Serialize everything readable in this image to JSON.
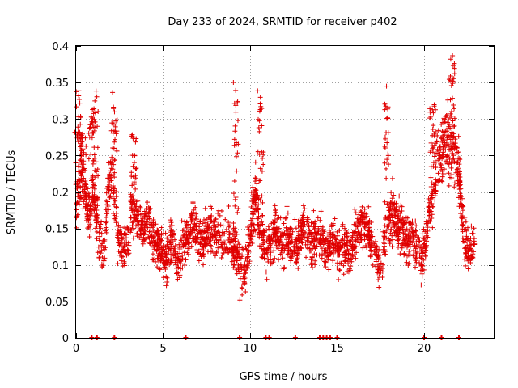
{
  "chart_data": {
    "type": "scatter",
    "title": "Day 233 of 2024, SRMTID for receiver p402",
    "xlabel": "GPS time / hours",
    "ylabel": "SRMTID / TECUs",
    "xlim": [
      0,
      24
    ],
    "ylim": [
      0,
      0.4
    ],
    "x_ticks": [
      0,
      5,
      10,
      15,
      20
    ],
    "x_tick_labels": [
      "0",
      "5",
      "10",
      "15",
      "20"
    ],
    "y_ticks": [
      0,
      0.05,
      0.1,
      0.15,
      0.2,
      0.25,
      0.3,
      0.35,
      0.4
    ],
    "y_tick_labels": [
      "0",
      "0.05",
      "0.1",
      "0.15",
      "0.2",
      "0.25",
      "0.3",
      "0.35",
      "0.4"
    ],
    "grid": true,
    "marker": "+",
    "color": "#e00000",
    "series": [
      {
        "name": "SRMTID",
        "anchors": {
          "x": [
            0.0,
            0.1,
            0.3,
            0.5,
            0.8,
            1.0,
            1.3,
            1.6,
            1.9,
            2.1,
            2.4,
            2.7,
            3.0,
            3.3,
            3.6,
            3.9,
            4.2,
            4.5,
            4.8,
            5.2,
            5.5,
            5.8,
            6.1,
            6.4,
            6.7,
            7.0,
            7.3,
            7.6,
            7.9,
            8.2,
            8.5,
            8.8,
            9.1,
            9.4,
            9.7,
            10.0,
            10.3,
            10.6,
            10.9,
            11.2,
            11.5,
            11.8,
            12.1,
            12.4,
            12.7,
            13.0,
            13.3,
            13.6,
            13.9,
            14.2,
            14.5,
            14.8,
            15.1,
            15.4,
            15.7,
            16.0,
            16.3,
            16.6,
            16.9,
            17.2,
            17.5,
            17.8,
            18.1,
            18.4,
            18.7,
            19.0,
            19.3,
            19.6,
            19.9,
            20.2,
            20.5,
            20.8,
            21.1,
            21.4,
            21.7,
            22.0,
            22.3,
            22.6,
            22.9
          ],
          "center": [
            0.16,
            0.2,
            0.24,
            0.19,
            0.17,
            0.2,
            0.14,
            0.12,
            0.21,
            0.22,
            0.14,
            0.12,
            0.14,
            0.18,
            0.16,
            0.15,
            0.16,
            0.13,
            0.12,
            0.11,
            0.14,
            0.1,
            0.12,
            0.14,
            0.16,
            0.14,
            0.13,
            0.15,
            0.14,
            0.15,
            0.13,
            0.14,
            0.12,
            0.1,
            0.09,
            0.14,
            0.2,
            0.15,
            0.12,
            0.13,
            0.15,
            0.12,
            0.14,
            0.13,
            0.12,
            0.15,
            0.14,
            0.13,
            0.15,
            0.13,
            0.12,
            0.14,
            0.12,
            0.13,
            0.11,
            0.14,
            0.15,
            0.16,
            0.14,
            0.12,
            0.09,
            0.15,
            0.17,
            0.16,
            0.15,
            0.13,
            0.14,
            0.12,
            0.11,
            0.16,
            0.2,
            0.24,
            0.26,
            0.28,
            0.25,
            0.22,
            0.14,
            0.12,
            0.13
          ],
          "spread": [
            0.04,
            0.06,
            0.05,
            0.05,
            0.04,
            0.05,
            0.05,
            0.04,
            0.04,
            0.05,
            0.04,
            0.03,
            0.04,
            0.05,
            0.04,
            0.04,
            0.04,
            0.04,
            0.04,
            0.04,
            0.04,
            0.03,
            0.04,
            0.04,
            0.04,
            0.04,
            0.04,
            0.04,
            0.04,
            0.04,
            0.04,
            0.04,
            0.04,
            0.04,
            0.04,
            0.05,
            0.06,
            0.04,
            0.04,
            0.04,
            0.04,
            0.04,
            0.04,
            0.04,
            0.04,
            0.04,
            0.04,
            0.04,
            0.04,
            0.04,
            0.04,
            0.04,
            0.04,
            0.04,
            0.04,
            0.04,
            0.04,
            0.04,
            0.04,
            0.04,
            0.03,
            0.05,
            0.05,
            0.04,
            0.04,
            0.04,
            0.04,
            0.04,
            0.04,
            0.04,
            0.05,
            0.06,
            0.06,
            0.06,
            0.06,
            0.05,
            0.04,
            0.04,
            0.04
          ]
        },
        "peaks": [
          {
            "x": 0.1,
            "y": 0.34
          },
          {
            "x": 0.4,
            "y": 0.3
          },
          {
            "x": 0.9,
            "y": 0.31
          },
          {
            "x": 1.1,
            "y": 0.34
          },
          {
            "x": 2.2,
            "y": 0.34
          },
          {
            "x": 3.3,
            "y": 0.28
          },
          {
            "x": 9.2,
            "y": 0.355
          },
          {
            "x": 10.6,
            "y": 0.34
          },
          {
            "x": 17.9,
            "y": 0.35
          },
          {
            "x": 20.5,
            "y": 0.32
          },
          {
            "x": 21.6,
            "y": 0.39
          }
        ],
        "n_points": 2600,
        "seed": 402
      }
    ],
    "zero_markers_x": [
      0.9,
      1.2,
      2.2,
      6.3,
      9.4,
      10.9,
      11.1,
      12.6,
      14.0,
      14.2,
      14.4,
      14.6,
      15.0,
      20.0,
      21.0,
      22.0
    ]
  }
}
